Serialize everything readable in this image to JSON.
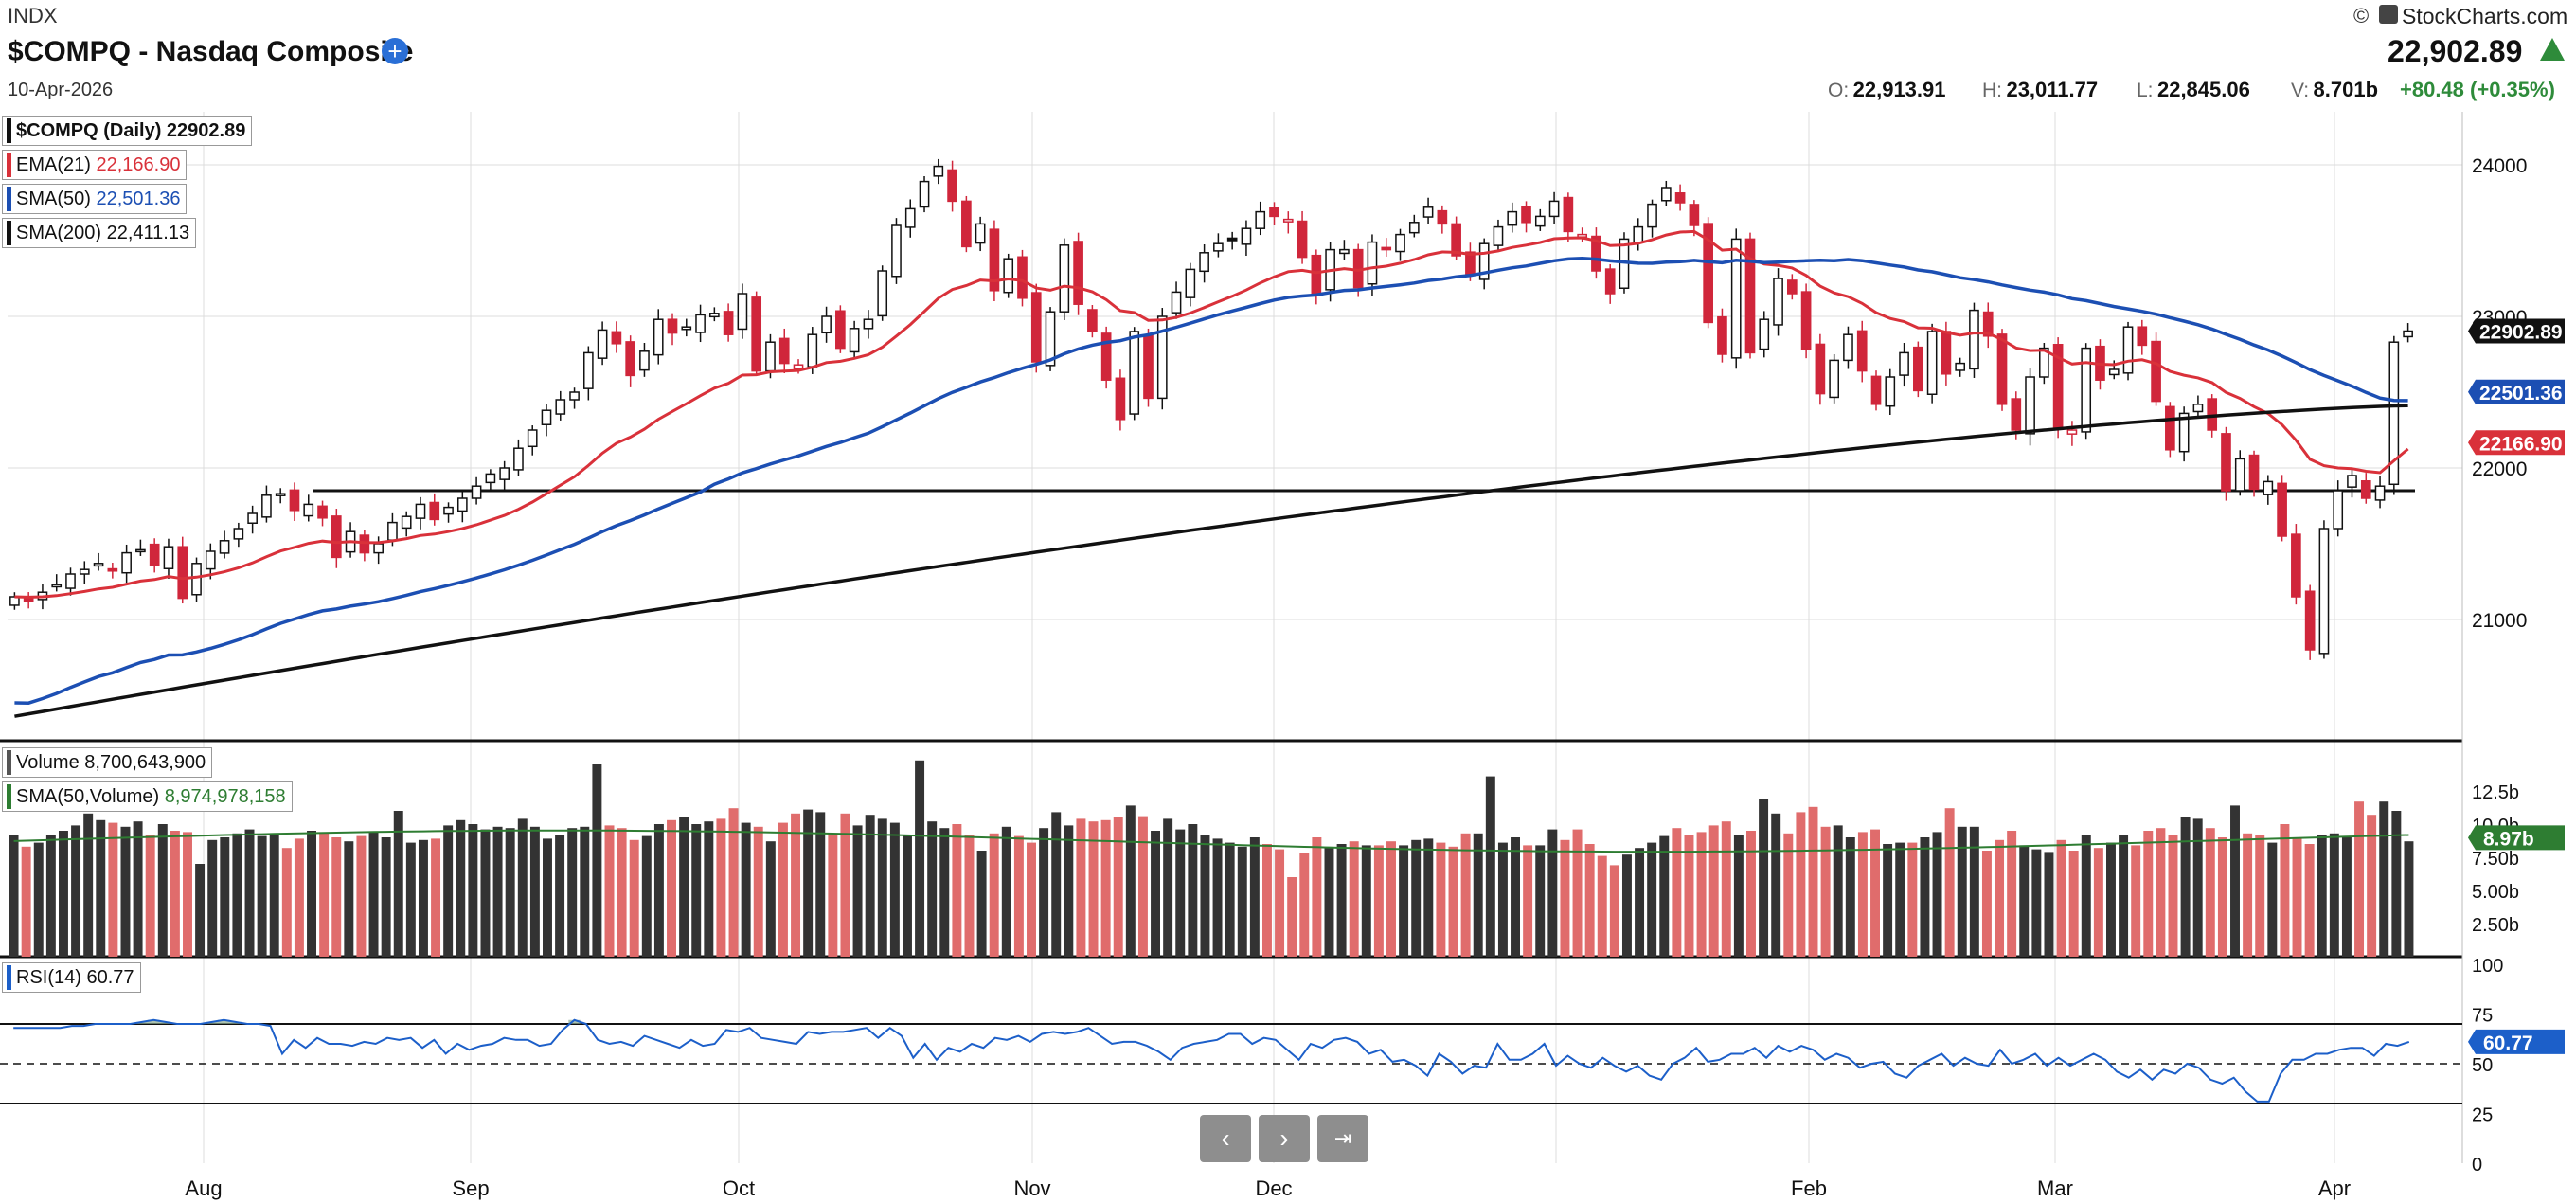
{
  "header": {
    "exchange": "INDX",
    "title": "$COMPQ - Nasdaq Composite",
    "date": "10-Apr-2026",
    "brand": "StockCharts.com",
    "price": "22,902.89",
    "ohlc": [
      {
        "label": "O:",
        "value": "22,913.91"
      },
      {
        "label": "H:",
        "value": "23,011.77"
      },
      {
        "label": "L:",
        "value": "22,845.06"
      },
      {
        "label": "V:",
        "value": "8.701b"
      }
    ],
    "change": "+80.48 (+0.35%)"
  },
  "legend": {
    "price": "$COMPQ (Daily)",
    "price_val": "22902.89",
    "ema": "EMA(21)",
    "ema_val": "22,166.90",
    "sma50": "SMA(50)",
    "sma50_val": "22,501.36",
    "sma200": "SMA(200)",
    "sma200_val": "22,411.13",
    "volume": "Volume",
    "volume_val": "8,700,643,900",
    "vol_sma": "SMA(50,Volume)",
    "vol_sma_val": "8,974,978,158",
    "rsi": "RSI(14)",
    "rsi_val": "60.77"
  },
  "colors": {
    "up": "#111111",
    "down": "#d0263b",
    "ema": "#d9313a",
    "sma50": "#1c4fb3",
    "sma200": "#111111",
    "vol_sma": "#2e7d32",
    "rsi": "#1c5fc9",
    "change_up": "#2e8b3a",
    "vol_up": "#333333",
    "vol_down": "#e06c6c"
  },
  "chart_data": [
    {
      "type": "candlestick",
      "title": "$COMPQ - Nasdaq Composite",
      "ylim": [
        20200,
        24350
      ],
      "y_ticks": [
        "24000",
        "23000",
        "22000",
        "21000"
      ],
      "x_ticks": [
        "Aug",
        "Sep",
        "Oct",
        "Nov",
        "Dec",
        "Feb",
        "Mar",
        "Apr"
      ],
      "horizontal_line": 21850,
      "last_close_label": "22902.89",
      "end_labels": {
        "sma50": "22501.36",
        "ema": "22166.90"
      },
      "closes": [
        21150,
        21120,
        21180,
        21230,
        21300,
        21330,
        21370,
        21320,
        21440,
        21460,
        21360,
        21480,
        21140,
        21370,
        21450,
        21520,
        21600,
        21700,
        21820,
        21830,
        21720,
        21760,
        21670,
        21410,
        21580,
        21440,
        21500,
        21640,
        21680,
        21760,
        21660,
        21740,
        21800,
        21880,
        21960,
        22000,
        22130,
        22250,
        22380,
        22450,
        22500,
        22760,
        22910,
        22820,
        22610,
        22770,
        22980,
        22890,
        22930,
        23010,
        23020,
        22880,
        23150,
        22640,
        22830,
        22690,
        22680,
        22880,
        23000,
        22790,
        22920,
        22980,
        23300,
        23600,
        23710,
        23890,
        23990,
        23760,
        23460,
        23610,
        23170,
        23380,
        23120,
        22700,
        23030,
        23470,
        23080,
        22900,
        22580,
        22320,
        22900,
        22460,
        23000,
        23160,
        23310,
        23420,
        23480,
        23500,
        23580,
        23690,
        23660,
        23640,
        23390,
        23140,
        23440,
        23440,
        23190,
        23490,
        23440,
        23540,
        23620,
        23720,
        23610,
        23400,
        23280,
        23480,
        23590,
        23690,
        23620,
        23660,
        23760,
        23560,
        23540,
        23300,
        23150,
        23510,
        23590,
        23740,
        23850,
        23750,
        23600,
        22960,
        22750,
        23510,
        22760,
        22980,
        23250,
        23150,
        22780,
        22490,
        22710,
        22880,
        22640,
        22420,
        22600,
        22760,
        22510,
        22900,
        22620,
        22690,
        23040,
        22870,
        22420,
        22250,
        22600,
        22790,
        22260,
        22250,
        22790,
        22580,
        22650,
        22930,
        22810,
        22440,
        22120,
        22360,
        22420,
        22250,
        21850,
        22060,
        21860,
        21910,
        21550,
        21150,
        20800,
        21600,
        21850,
        21950,
        21800,
        21880,
        22830,
        22903
      ],
      "ema21_end": 22166.9,
      "sma50_end": 22501.36,
      "sma200_end": 22411.13
    },
    {
      "type": "bar",
      "title": "Volume",
      "ylim": [
        0,
        15000000000
      ],
      "y_ticks": [
        "12.5b",
        "10.0b",
        "7.50b",
        "5.00b",
        "2.50b"
      ],
      "sma_label": "8.97b",
      "values_b": [
        9.2,
        8.3,
        8.6,
        9.2,
        9.5,
        9.9,
        10.8,
        10.3,
        10.1,
        9.8,
        10.2,
        9.2,
        10.0,
        9.5,
        9.4,
        7.0,
        8.8,
        9.0,
        9.3,
        9.6,
        9.1,
        9.2,
        8.2,
        8.9,
        9.5,
        9.3,
        9.0,
        8.7,
        9.1,
        9.4,
        9.0,
        11.0,
        8.6,
        8.8,
        8.9,
        9.9,
        10.3,
        10.0,
        9.6,
        9.8,
        9.7,
        10.4,
        9.8,
        8.9,
        9.2,
        9.7,
        9.8,
        14.5,
        9.9,
        9.7,
        8.8,
        9.1,
        10.0,
        10.3,
        10.5,
        10.0,
        10.2,
        10.4,
        11.2,
        10.1,
        9.8,
        8.7,
        10.1,
        10.8,
        11.1,
        10.9,
        9.3,
        10.8,
        9.9,
        10.7,
        10.4,
        10.1,
        9.2,
        14.8,
        10.2,
        9.7,
        10.0,
        9.2,
        8.0,
        9.3,
        9.8,
        9.1,
        8.6,
        9.7,
        10.9,
        9.9,
        10.4,
        10.2,
        10.3,
        10.5,
        11.4,
        10.6,
        9.5,
        10.4,
        9.6,
        10.0,
        9.2,
        8.9,
        8.6,
        8.3,
        9.0,
        8.5,
        8.1,
        6.0,
        7.8,
        9.0,
        8.2,
        8.5,
        8.7,
        8.4,
        8.4,
        8.7,
        8.4,
        8.8,
        8.9,
        8.6,
        8.3,
        9.3,
        9.3,
        13.6,
        8.6,
        9.0,
        8.4,
        8.4,
        9.6,
        8.8,
        9.6,
        8.5,
        7.6,
        6.9,
        7.7,
        8.2,
        8.6,
        9.1,
        9.7,
        9.2,
        9.4,
        9.9,
        10.2,
        9.2,
        9.5,
        11.9,
        10.8,
        9.3,
        10.9,
        11.3,
        9.8,
        9.9,
        9.0,
        9.4,
        9.6,
        8.5,
        8.6,
        8.6,
        9.0,
        9.4,
        11.2,
        9.8,
        9.8,
        8.0,
        8.8,
        9.5,
        8.4,
        8.1,
        7.9,
        8.8,
        8.0,
        9.2,
        8.2,
        8.6,
        9.2,
        8.4,
        9.5,
        9.7,
        9.2,
        10.5,
        10.4,
        9.7,
        9.0,
        11.4,
        9.3,
        9.2,
        8.6,
        10.0,
        8.9,
        8.5,
        9.2,
        9.3,
        9.0,
        11.7,
        10.7,
        11.7,
        11.0,
        8.7
      ],
      "down_days": "derived from candle colors",
      "sma50_value_b": 8.97
    },
    {
      "type": "line",
      "title": "RSI(14)",
      "ylim": [
        0,
        100
      ],
      "y_ticks": [
        "100",
        "75",
        "50",
        "25",
        "0"
      ],
      "reference_lines": [
        70,
        50,
        30
      ],
      "last_label": "60.77",
      "rsi": [
        68,
        68,
        68,
        68,
        68,
        69,
        69,
        70,
        70,
        70,
        70,
        71,
        72,
        71,
        70,
        70,
        70,
        71,
        72,
        71,
        70,
        70,
        69,
        55,
        62,
        58,
        63,
        60,
        60,
        59,
        61,
        60,
        63,
        62,
        63,
        58,
        62,
        55,
        60,
        57,
        59,
        60,
        63,
        62,
        62,
        59,
        60,
        67,
        72,
        70,
        62,
        60,
        61,
        59,
        64,
        62,
        60,
        58,
        62,
        59,
        60,
        67,
        66,
        68,
        63,
        62,
        61,
        60,
        66,
        65,
        66,
        66,
        67,
        68,
        63,
        68,
        64,
        53,
        60,
        52,
        58,
        56,
        60,
        58,
        63,
        62,
        64,
        61,
        65,
        66,
        65,
        66,
        68,
        64,
        60,
        61,
        61,
        59,
        56,
        52,
        58,
        60,
        61,
        62,
        65,
        65,
        60,
        63,
        62,
        57,
        52,
        60,
        58,
        62,
        63,
        61,
        55,
        57,
        51,
        52,
        49,
        44,
        55,
        51,
        45,
        49,
        48,
        60,
        52,
        52,
        55,
        60,
        49,
        54,
        50,
        48,
        53,
        49,
        46,
        49,
        44,
        42,
        50,
        53,
        58,
        51,
        52,
        55,
        55,
        58,
        53,
        59,
        56,
        59,
        57,
        52,
        55,
        53,
        48,
        50,
        51,
        45,
        43,
        49,
        52,
        55,
        49,
        53,
        50,
        49,
        57,
        50,
        52,
        55,
        49,
        53,
        49,
        52,
        55,
        52,
        46,
        43,
        47,
        42,
        47,
        45,
        50,
        48,
        42,
        40,
        43,
        36,
        31,
        31,
        45,
        52,
        52,
        55,
        55,
        57,
        58,
        58,
        54,
        60,
        59,
        61
      ]
    }
  ]
}
